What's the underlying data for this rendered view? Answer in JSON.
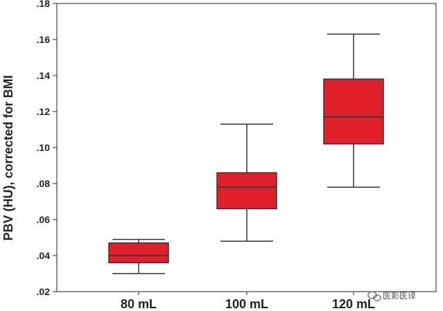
{
  "chart_data": {
    "type": "boxplot",
    "categories": [
      "80 mL",
      "100 mL",
      "120 mL"
    ],
    "ylabel": "PBV (HU), corrected for BMI",
    "xlabel": "",
    "ylim": [
      0.02,
      0.18
    ],
    "yticks": [
      ".02",
      ".04",
      ".06",
      ".08",
      ".10",
      ".12",
      ".14",
      ".16",
      ".18"
    ],
    "ytick_values": [
      0.02,
      0.04,
      0.06,
      0.08,
      0.1,
      0.12,
      0.14,
      0.16,
      0.18
    ],
    "boxes": [
      {
        "category": "80 mL",
        "whisker_low": 0.03,
        "q1": 0.036,
        "median": 0.04,
        "q3": 0.047,
        "whisker_high": 0.049
      },
      {
        "category": "100 mL",
        "whisker_low": 0.048,
        "q1": 0.066,
        "median": 0.078,
        "q3": 0.086,
        "whisker_high": 0.113
      },
      {
        "category": "120 mL",
        "whisker_low": 0.078,
        "q1": 0.102,
        "median": 0.117,
        "q3": 0.138,
        "whisker_high": 0.163
      }
    ],
    "box_color": "#e0202a",
    "line_color": "#333333",
    "grid": false,
    "legend": "none"
  },
  "watermark": {
    "text": "医影医译",
    "icon": "wechat-icon"
  }
}
